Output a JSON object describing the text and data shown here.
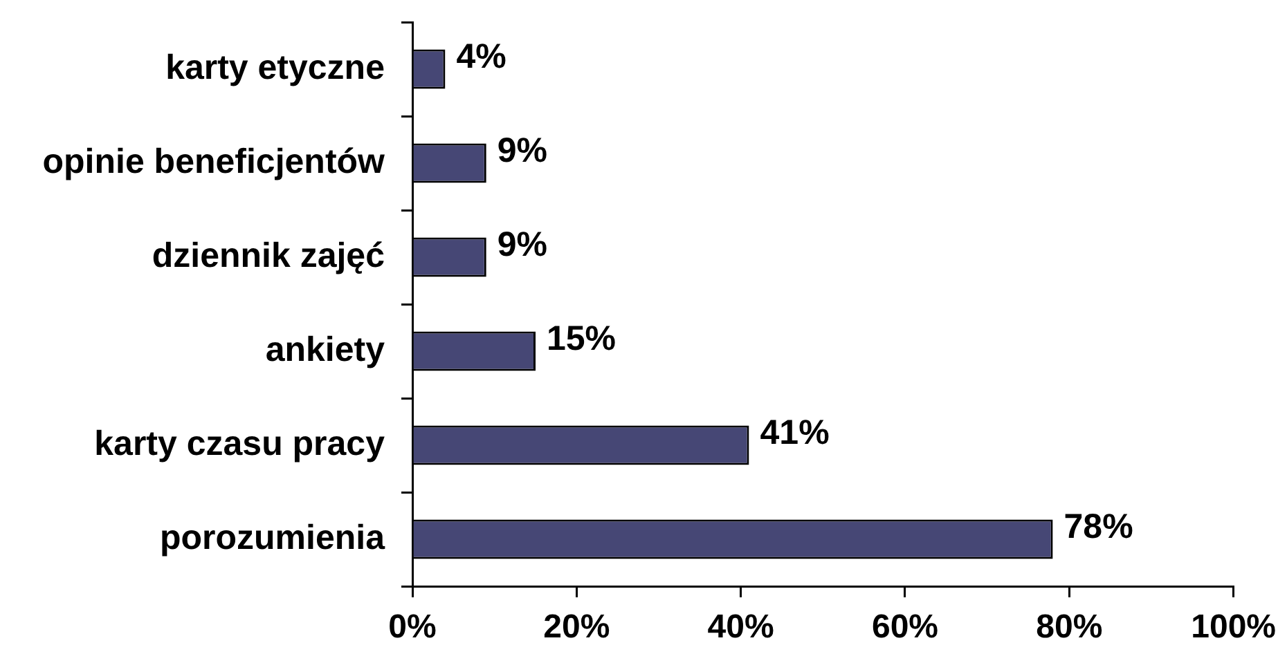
{
  "chart_data": {
    "type": "bar",
    "orientation": "horizontal",
    "categories": [
      "karty etyczne",
      "opinie beneficjentów",
      "dziennik zajęć",
      "ankiety",
      "karty czasu pracy",
      "porozumienia"
    ],
    "values": [
      4,
      9,
      9,
      15,
      41,
      78
    ],
    "value_labels": [
      "4%",
      "9%",
      "9%",
      "15%",
      "41%",
      "78%"
    ],
    "color": "#464775",
    "xlim": [
      0,
      100
    ],
    "xticks": [
      {
        "value": 0,
        "label": "0%"
      },
      {
        "value": 20,
        "label": "20%"
      },
      {
        "value": 40,
        "label": "40%"
      },
      {
        "value": 60,
        "label": "60%"
      },
      {
        "value": 80,
        "label": "80%"
      },
      {
        "value": 100,
        "label": "100%"
      }
    ],
    "grid": false,
    "legend": false
  }
}
